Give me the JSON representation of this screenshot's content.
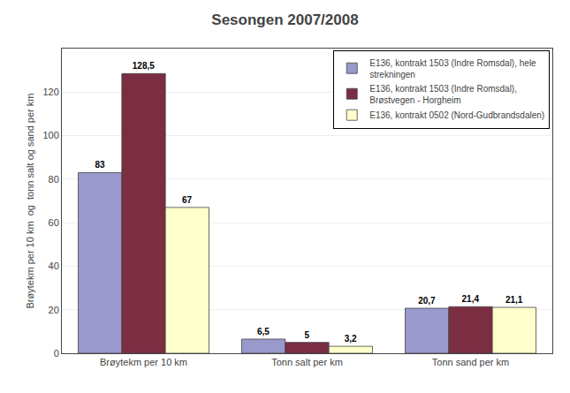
{
  "chart_data": {
    "type": "bar",
    "title": "Sesongen 2007/2008",
    "categories": [
      "Brøytekm per 10 km",
      "Tonn salt per km",
      "Tonn sand per km"
    ],
    "series": [
      {
        "name": "E136, kontrakt 1503 (Indre Romsdal), hele\nstrekningen",
        "color": "#9999CC",
        "values": [
          83,
          6.5,
          20.7
        ],
        "value_labels": [
          "83",
          "6,5",
          "20,7"
        ]
      },
      {
        "name": "E136, kontrakt 1503 (Indre Romsdal),\nBrøstvegen - Horgheim",
        "color": "#7B2D42",
        "values": [
          128.5,
          5,
          21.4
        ],
        "value_labels": [
          "128,5",
          "5",
          "21,4"
        ]
      },
      {
        "name": "E136, kontrakt 0502 (Nord-Gudbrandsdalen)",
        "color": "#FFFFCC",
        "values": [
          67,
          3.2,
          21.1
        ],
        "value_labels": [
          "67",
          "3,2",
          "21,1"
        ]
      }
    ],
    "ylabel": "Brøytekm per 10 km  og  tonn salt og sand per km",
    "ylim": [
      0,
      140
    ],
    "yticks": [
      0,
      20,
      40,
      60,
      80,
      100,
      120
    ],
    "grid": true,
    "legend": "upper right",
    "data_labels": true
  }
}
